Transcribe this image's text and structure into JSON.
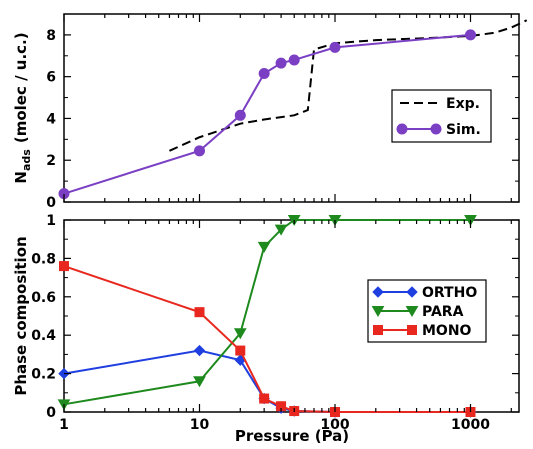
{
  "chart_data": [
    {
      "type": "line",
      "xscale": "log",
      "xlim": [
        1,
        2700
      ],
      "ylim": [
        0,
        9
      ],
      "yticks": [
        0,
        2,
        4,
        6,
        8
      ],
      "ylabel_main": "N",
      "ylabel_sub": "ads",
      "ylabel_rest": "(molec / u.c.)",
      "legend_position": "center-right",
      "series": [
        {
          "name": "Exp.",
          "style": "dashed",
          "color": "#000000",
          "marker": "none",
          "x": [
            6,
            10,
            20,
            30,
            50,
            63,
            70,
            100,
            200,
            500,
            1000,
            1500,
            2000,
            2600
          ],
          "y": [
            2.45,
            3.1,
            3.75,
            3.95,
            4.15,
            4.4,
            7.3,
            7.6,
            7.75,
            7.85,
            7.95,
            8.1,
            8.35,
            8.7
          ]
        },
        {
          "name": "Sim.",
          "style": "solid",
          "color": "#7b3fc4",
          "marker": "circle",
          "x": [
            1,
            10,
            20,
            30,
            40,
            50,
            100,
            1000
          ],
          "y": [
            0.4,
            2.45,
            4.15,
            6.15,
            6.65,
            6.8,
            7.4,
            8.0
          ]
        }
      ]
    },
    {
      "type": "line",
      "xscale": "log",
      "xlim": [
        1,
        2700
      ],
      "ylim": [
        0,
        1
      ],
      "yticks": [
        "0",
        "0.2",
        "0.4",
        "0.6",
        "0.8",
        "1"
      ],
      "xticks": [
        "1",
        "10",
        "100",
        "1000"
      ],
      "xlabel": "Pressure (Pa)",
      "ylabel": "Phase composition",
      "legend_position": "center-right",
      "series": [
        {
          "name": "ORTHO",
          "color": "#1f3fe0",
          "marker": "diamond",
          "x": [
            1,
            10,
            20,
            30,
            40,
            50,
            100,
            1000
          ],
          "y": [
            0.2,
            0.32,
            0.27,
            0.07,
            0.02,
            0.005,
            0.0,
            0.0
          ]
        },
        {
          "name": "PARA",
          "color": "#1e8a1e",
          "marker": "triangle-down",
          "x": [
            1,
            10,
            20,
            30,
            40,
            50,
            100,
            1000
          ],
          "y": [
            0.04,
            0.16,
            0.41,
            0.86,
            0.95,
            1.0,
            1.0,
            1.0
          ]
        },
        {
          "name": "MONO",
          "color": "#e8281e",
          "marker": "square",
          "x": [
            1,
            10,
            20,
            30,
            40,
            50,
            100,
            1000
          ],
          "y": [
            0.76,
            0.52,
            0.32,
            0.07,
            0.03,
            0.005,
            0.0,
            0.0
          ]
        }
      ]
    }
  ]
}
